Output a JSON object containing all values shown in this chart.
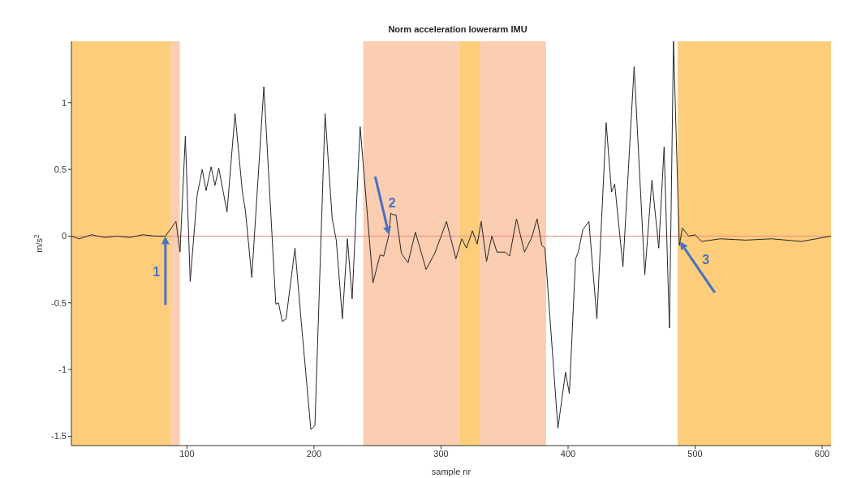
{
  "chart_data": {
    "type": "line",
    "title": "Norm acceleration lowerarm IMU",
    "xlabel": "sample nr",
    "ylabel": "m/s$^{2}$",
    "x": [
      9,
      15,
      25,
      35,
      45,
      55,
      65,
      75,
      83,
      91.3,
      94.5,
      98.7,
      102.5,
      108,
      112,
      115,
      119,
      122,
      125,
      131.5,
      137.8,
      143.6,
      146,
      151,
      160.5,
      169.9,
      172,
      175,
      178,
      185,
      190,
      197.5,
      200.7,
      208.7,
      214.3,
      217.5,
      222.3,
      226.3,
      230,
      236.3,
      246.4,
      252,
      254.8,
      259,
      260.4,
      262.5,
      264.5,
      268.8,
      274,
      279.8,
      288.2,
      295,
      304.3,
      311.7,
      316.3,
      320,
      324.7,
      328.5,
      331.6,
      335.8,
      340,
      344,
      350.4,
      354,
      359.4,
      365.7,
      371.4,
      375.6,
      379.3,
      381.8,
      392,
      398,
      401,
      405.9,
      408,
      411.7,
      416.4,
      422.7,
      430,
      434.2,
      436.7,
      443.2,
      452,
      460.4,
      466,
      471.4,
      475.6,
      479.8,
      483,
      487.6,
      490,
      495,
      500,
      505,
      520,
      540,
      560,
      583.7,
      607
    ],
    "series": [
      {
        "color": "#262626",
        "values": [
          0,
          -0.02,
          0.01,
          -0.01,
          0,
          -0.01,
          0.01,
          0,
          0,
          0.11,
          -0.12,
          0.75,
          -0.34,
          0.31,
          0.5,
          0.34,
          0.52,
          0.38,
          0.51,
          0.18,
          0.92,
          0.33,
          0.19,
          -0.31,
          1.12,
          -0.51,
          -0.5,
          -0.64,
          -0.62,
          -0.09,
          -0.65,
          -1.45,
          -1.42,
          0.92,
          0.13,
          -0.03,
          -0.62,
          -0.02,
          -0.47,
          0.82,
          -0.35,
          -0.14,
          -0.15,
          0.01,
          0.17,
          0.16,
          0.16,
          -0.13,
          -0.2,
          0.03,
          -0.25,
          -0.13,
          0.11,
          -0.17,
          -0.02,
          -0.09,
          0.04,
          -0.06,
          0.11,
          -0.19,
          0,
          -0.12,
          -0.12,
          -0.15,
          0.13,
          -0.12,
          -0.01,
          0.13,
          -0.07,
          -0.09,
          -1.44,
          -1.02,
          -1.18,
          -0.17,
          -0.12,
          0.05,
          0.11,
          -0.62,
          0.85,
          0.33,
          0.39,
          -0.23,
          1.27,
          -0.29,
          0.42,
          -0.09,
          0.67,
          -0.69,
          1.46,
          -0.07,
          0.06,
          0,
          0.01,
          -0.04,
          -0.02,
          -0.03,
          -0.02,
          -0.04,
          0
        ]
      }
    ],
    "xlim": [
      9,
      607
    ],
    "xticks": [
      100,
      200,
      300,
      400,
      500,
      600
    ],
    "ylim": [
      -1.57,
      1.46
    ],
    "yticks": [
      -1.5,
      -1,
      -0.5,
      0,
      0.5,
      1
    ],
    "ref_lines": [
      {
        "axis": "y",
        "value": 0,
        "color": "#f08a8a"
      }
    ],
    "bands": [
      {
        "axis": "x",
        "from": 9,
        "to": 87.4,
        "color": "#fdcd7c"
      },
      {
        "axis": "x",
        "from": 87.4,
        "to": 94.3,
        "color": "#fbcdb1"
      },
      {
        "axis": "x",
        "from": 238.8,
        "to": 314,
        "color": "#fbcdb1"
      },
      {
        "axis": "x",
        "from": 314,
        "to": 330.5,
        "color": "#fdcd7c"
      },
      {
        "axis": "x",
        "from": 330.5,
        "to": 382.7,
        "color": "#fbcdb1"
      },
      {
        "axis": "x",
        "from": 486.3,
        "to": 607,
        "color": "#fdcd7c"
      }
    ],
    "annotations": [
      {
        "text": "1",
        "x": 83,
        "y": 0
      },
      {
        "text": "2",
        "x": 259,
        "y": 0.01
      },
      {
        "text": "3",
        "x": 488,
        "y": -0.04
      }
    ],
    "grid": false,
    "marker": "none"
  }
}
